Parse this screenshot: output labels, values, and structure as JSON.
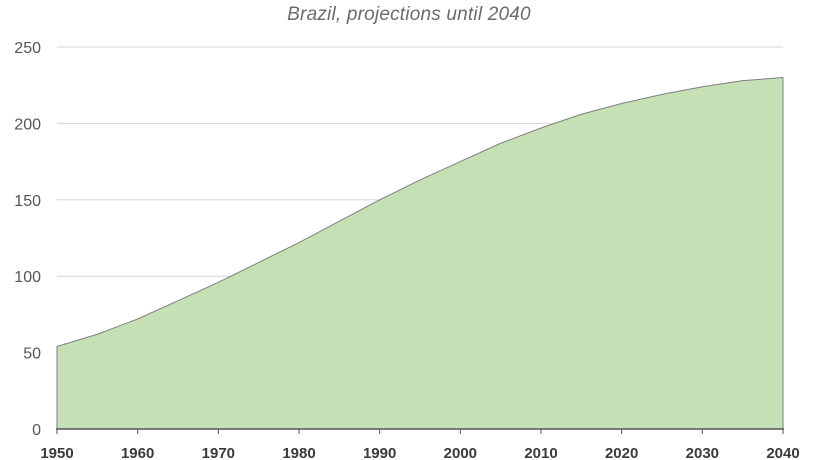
{
  "chart_data": {
    "type": "area",
    "title": "Brazil, projections until 2040",
    "xlabel": "",
    "ylabel": "",
    "x": [
      1950,
      1955,
      1960,
      1965,
      1970,
      1975,
      1980,
      1985,
      1990,
      1995,
      2000,
      2005,
      2010,
      2015,
      2020,
      2025,
      2030,
      2035,
      2040
    ],
    "series": [
      {
        "values": [
          54,
          62,
          72,
          84,
          96,
          109,
          122,
          136,
          150,
          163,
          175,
          187,
          197,
          206,
          213,
          219,
          224,
          228,
          230
        ]
      }
    ],
    "xlim": [
      1950,
      2040
    ],
    "ylim": [
      0,
      250
    ],
    "x_ticks": [
      "1950",
      "1960",
      "1970",
      "1980",
      "1990",
      "2000",
      "2010",
      "2020",
      "2030",
      "2040"
    ],
    "y_ticks": [
      "0",
      "50",
      "100",
      "150",
      "200",
      "250"
    ],
    "grid": true,
    "legend": "none",
    "colors": {
      "fill": "#c5e0b4",
      "line": "#7f7f7f",
      "grid": "#d6d6d6",
      "axis": "#555555"
    }
  }
}
